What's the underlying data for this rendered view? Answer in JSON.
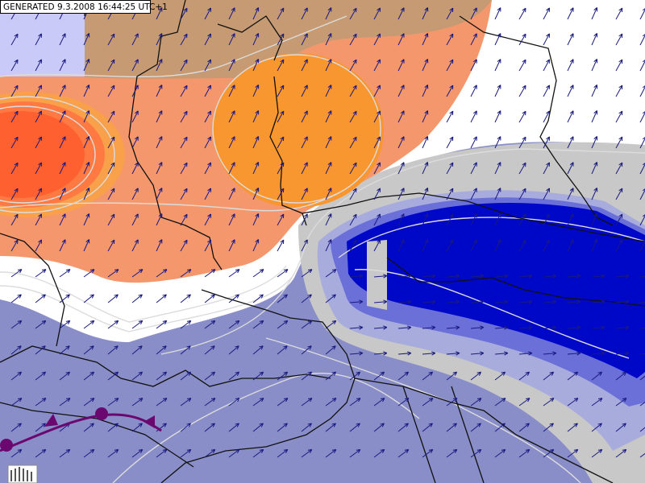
{
  "header": {
    "title": "GENERATED 9.3.2008 16:44:25 UTC+1"
  }
}
